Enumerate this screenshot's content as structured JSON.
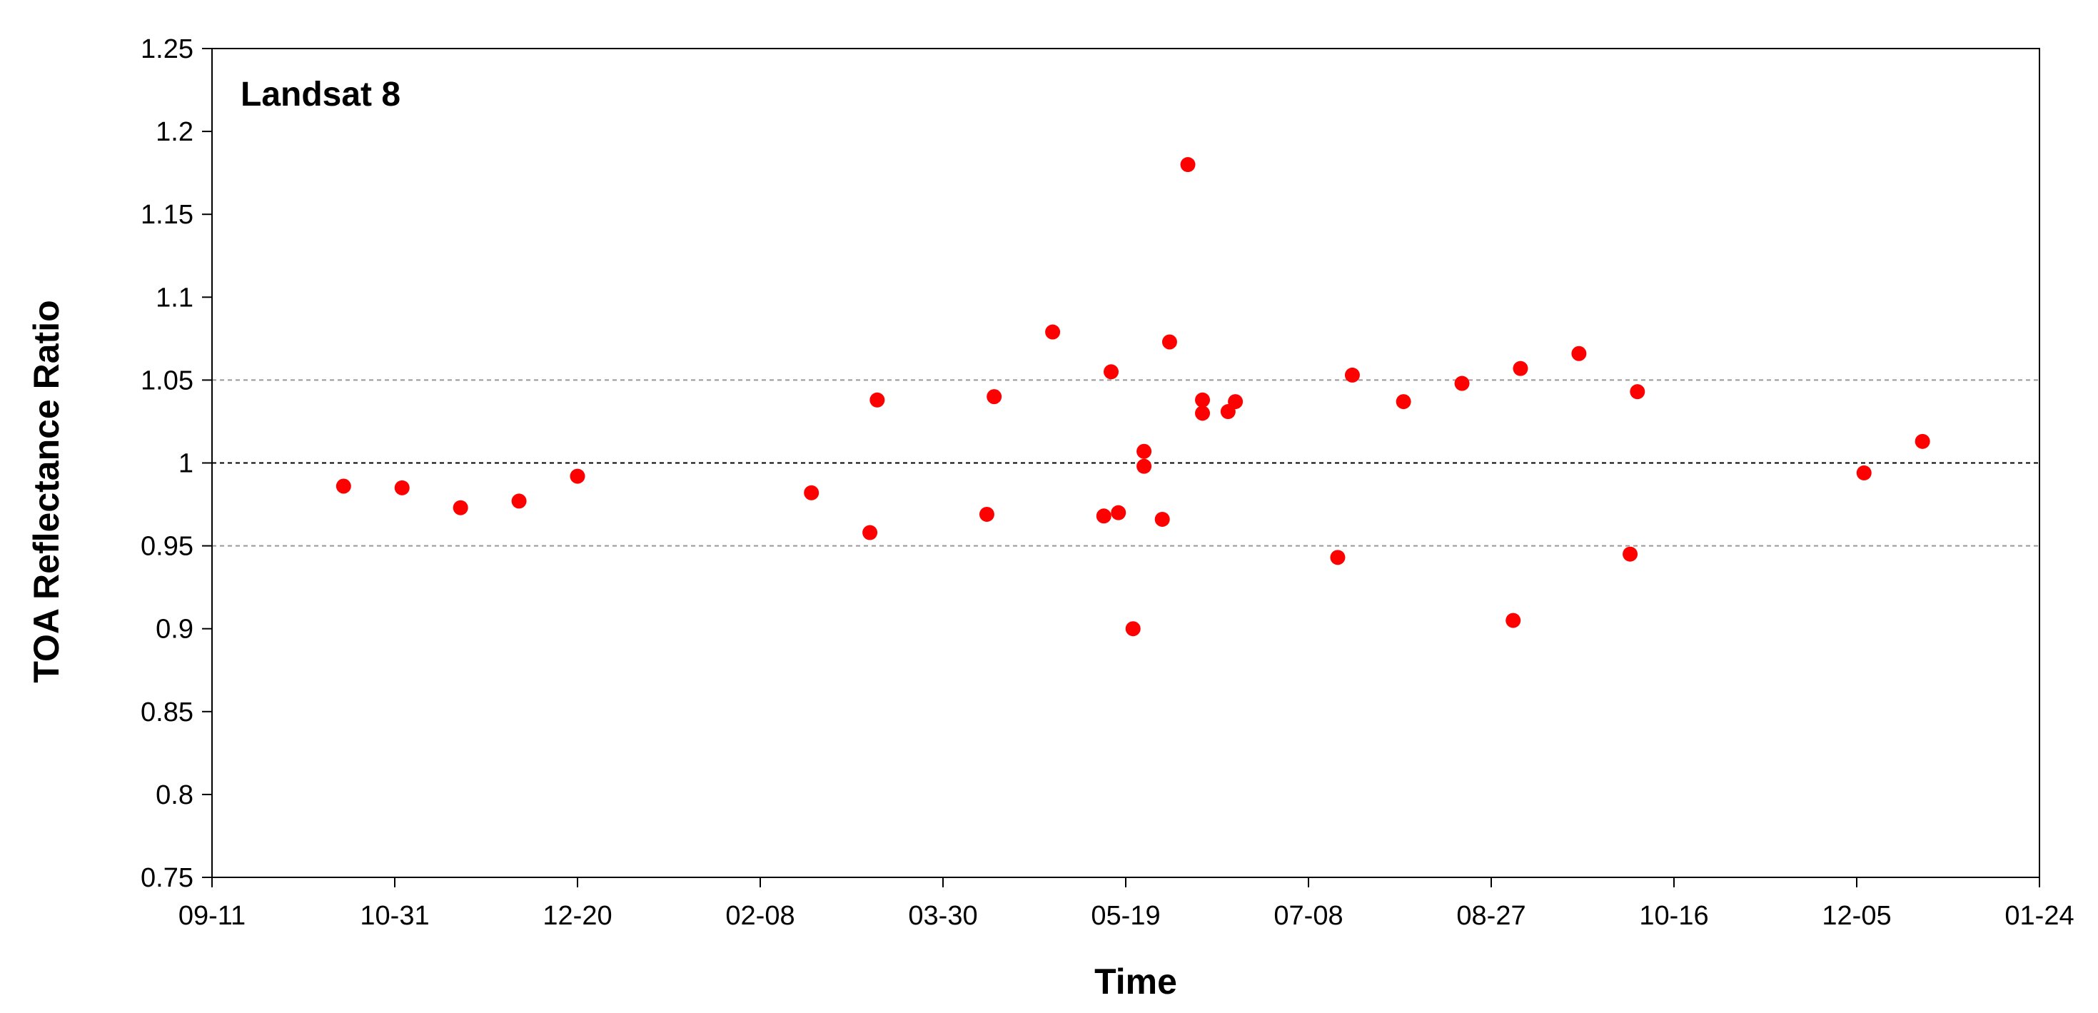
{
  "chart_data": {
    "type": "scatter",
    "title": "Landsat 8",
    "xlabel": "Time",
    "ylabel": "TOA Reflectance Ratio",
    "x_ticks": [
      "09-11",
      "10-31",
      "12-20",
      "02-08",
      "03-30",
      "05-19",
      "07-08",
      "08-27",
      "10-16",
      "12-05",
      "01-24"
    ],
    "y_ticks": [
      "0.75",
      "0.8",
      "0.85",
      "0.9",
      "0.95",
      "1",
      "1.05",
      "1.1",
      "1.15",
      "1.2",
      "1.25"
    ],
    "ylim": [
      0.75,
      1.25
    ],
    "x_range_days": [
      0,
      500
    ],
    "reference_lines": [
      {
        "y": 1.0,
        "style": "dashed",
        "color": "#000000"
      },
      {
        "y": 1.05,
        "style": "dashed",
        "color": "#999999"
      },
      {
        "y": 0.95,
        "style": "dashed",
        "color": "#999999"
      }
    ],
    "marker_color": "#ff0000",
    "grid": false,
    "points": [
      {
        "x": 36,
        "y": 0.986
      },
      {
        "x": 52,
        "y": 0.985
      },
      {
        "x": 68,
        "y": 0.973
      },
      {
        "x": 84,
        "y": 0.977
      },
      {
        "x": 100,
        "y": 0.992
      },
      {
        "x": 164,
        "y": 0.982
      },
      {
        "x": 180,
        "y": 0.958
      },
      {
        "x": 182,
        "y": 1.038
      },
      {
        "x": 212,
        "y": 0.969
      },
      {
        "x": 214,
        "y": 1.04
      },
      {
        "x": 230,
        "y": 1.079
      },
      {
        "x": 244,
        "y": 0.968
      },
      {
        "x": 246,
        "y": 1.055
      },
      {
        "x": 248,
        "y": 0.97
      },
      {
        "x": 252,
        "y": 0.9
      },
      {
        "x": 255,
        "y": 1.007
      },
      {
        "x": 255,
        "y": 0.998
      },
      {
        "x": 260,
        "y": 0.966
      },
      {
        "x": 262,
        "y": 1.073
      },
      {
        "x": 267,
        "y": 1.18
      },
      {
        "x": 271,
        "y": 1.038
      },
      {
        "x": 271,
        "y": 1.03
      },
      {
        "x": 278,
        "y": 1.031
      },
      {
        "x": 280,
        "y": 1.037
      },
      {
        "x": 308,
        "y": 0.943
      },
      {
        "x": 312,
        "y": 1.053
      },
      {
        "x": 326,
        "y": 1.037
      },
      {
        "x": 342,
        "y": 1.048
      },
      {
        "x": 356,
        "y": 0.905
      },
      {
        "x": 358,
        "y": 1.057
      },
      {
        "x": 374,
        "y": 1.066
      },
      {
        "x": 388,
        "y": 0.945
      },
      {
        "x": 390,
        "y": 1.043
      },
      {
        "x": 452,
        "y": 0.994
      },
      {
        "x": 468,
        "y": 1.013
      }
    ]
  }
}
